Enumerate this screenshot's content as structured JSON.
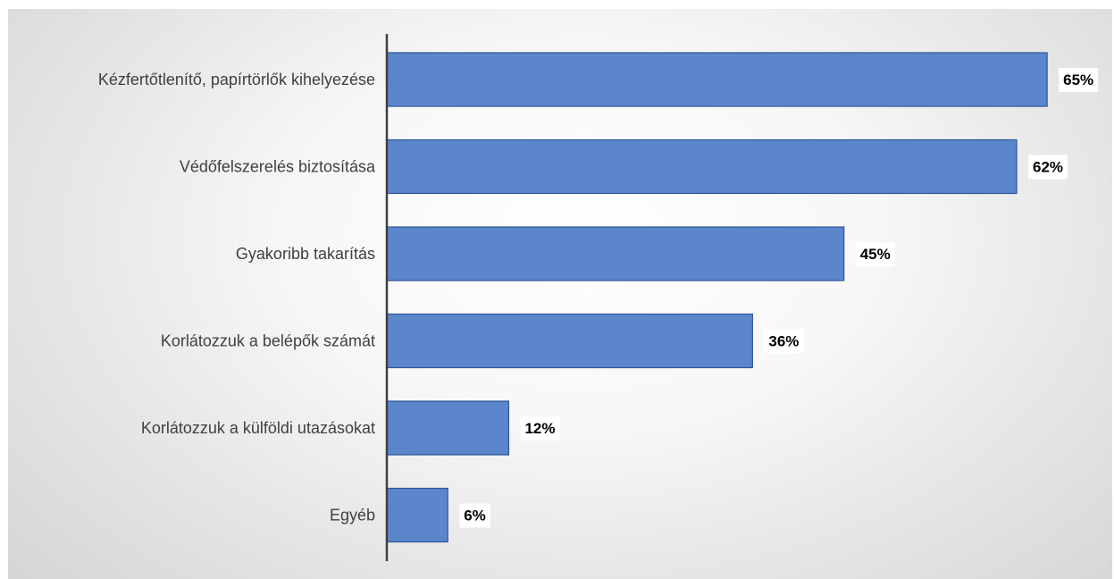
{
  "chart_data": {
    "type": "bar",
    "orientation": "horizontal",
    "categories": [
      "Kézfertőtlenítő, papírtörlők kihelyezése",
      "Védőfelszerelés biztosítása",
      "Gyakoribb takarítás",
      "Korlátozzuk a belépők számát",
      "Korlátozzuk a külföldi utazásokat",
      "Egyéb"
    ],
    "values": [
      65,
      62,
      45,
      36,
      12,
      6
    ],
    "value_labels": [
      "65%",
      "62%",
      "45%",
      "36%",
      "12%",
      "6%"
    ],
    "value_unit": "%",
    "xlim": [
      0,
      70
    ],
    "grid": false,
    "legend": "none",
    "bar_color": "#5b86cc",
    "bar_border_color": "#2f5597",
    "axis_color": "#404040"
  }
}
